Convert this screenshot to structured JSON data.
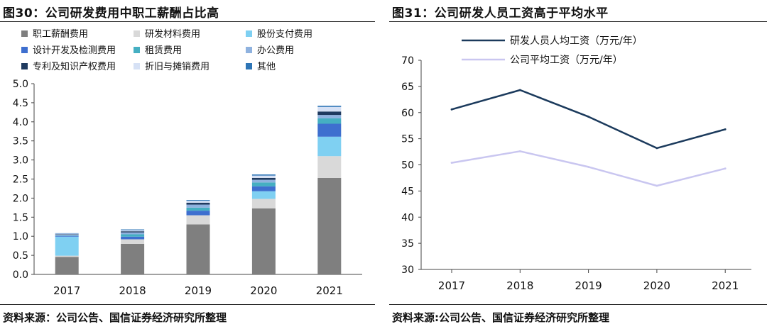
{
  "source_text_left": "资料来源：公司公告、国信证券经济研究所整理",
  "source_text_right": "资料来源:公司公告、国信证券经济研究所整理",
  "chart_data": [
    {
      "type": "bar",
      "stacked": true,
      "title": "图30：公司研发费用中职工薪酬占比高",
      "categories": [
        "2017",
        "2018",
        "2019",
        "2020",
        "2021"
      ],
      "ylim": [
        0,
        5.0
      ],
      "yticks": [
        "0.0",
        "0.5",
        "1.0",
        "1.5",
        "2.0",
        "2.5",
        "3.0",
        "3.5",
        "4.0",
        "4.5",
        "5.0"
      ],
      "legend_position": "top-left",
      "series": [
        {
          "name": "职工薪酬费用",
          "color": "#7f7f7f",
          "values": [
            0.46,
            0.8,
            1.31,
            1.73,
            2.53
          ]
        },
        {
          "name": "研发材料费用",
          "color": "#d9d9d9",
          "values": [
            0.03,
            0.12,
            0.24,
            0.25,
            0.57
          ]
        },
        {
          "name": "股份支付费用",
          "color": "#7fd0f2",
          "values": [
            0.5,
            0.0,
            0.0,
            0.2,
            0.51
          ]
        },
        {
          "name": "设计开发及检测费用",
          "color": "#3e6fcf",
          "values": [
            0.02,
            0.07,
            0.12,
            0.13,
            0.34
          ]
        },
        {
          "name": "租赁费用",
          "color": "#45afc2",
          "values": [
            0.01,
            0.06,
            0.08,
            0.1,
            0.14
          ]
        },
        {
          "name": "办公费用",
          "color": "#8fb2df",
          "values": [
            0.02,
            0.05,
            0.08,
            0.07,
            0.09
          ]
        },
        {
          "name": "专利及知识产权费用",
          "color": "#1f3a5f",
          "values": [
            0.01,
            0.03,
            0.05,
            0.05,
            0.09
          ]
        },
        {
          "name": "折旧与摊销费用",
          "color": "#d6e1f5",
          "values": [
            0.02,
            0.03,
            0.05,
            0.06,
            0.12
          ]
        },
        {
          "name": "其他",
          "color": "#2e75b6",
          "values": [
            0.01,
            0.02,
            0.02,
            0.03,
            0.03
          ]
        }
      ]
    },
    {
      "type": "line",
      "title": "图31：公司研发人员工资高于平均水平",
      "x": [
        "2017",
        "2018",
        "2019",
        "2020",
        "2021"
      ],
      "ylim": [
        30,
        70
      ],
      "yticks": [
        "30",
        "35",
        "40",
        "45",
        "50",
        "55",
        "60",
        "65",
        "70"
      ],
      "legend_position": "top-left",
      "series": [
        {
          "name": "研发人员人均工资（万元/年）",
          "color": "#1b3a5c",
          "values": [
            60.6,
            64.3,
            59.2,
            53.2,
            56.8
          ]
        },
        {
          "name": "公司平均工资（万元/年）",
          "color": "#c9c6f0",
          "values": [
            50.4,
            52.6,
            49.6,
            46.0,
            49.3
          ]
        }
      ]
    }
  ]
}
